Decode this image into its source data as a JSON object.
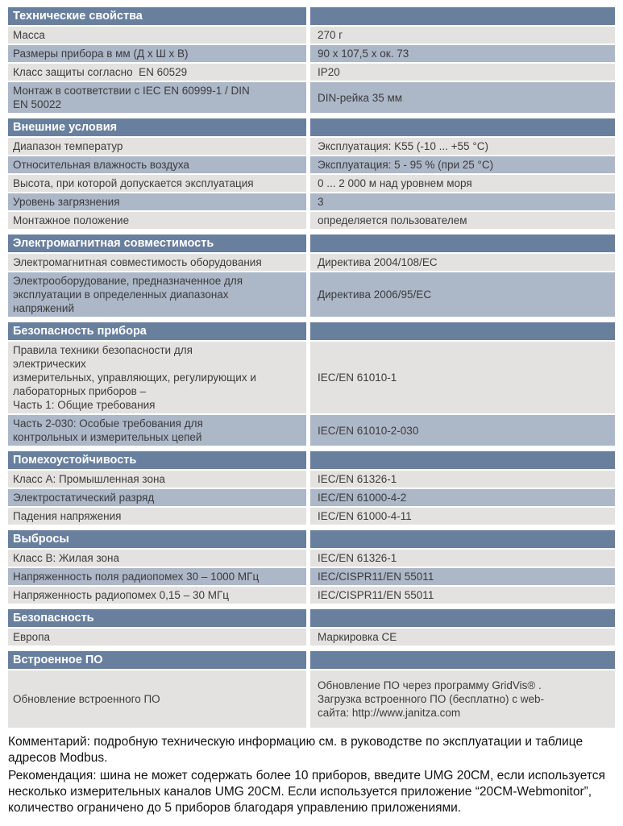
{
  "colors": {
    "section_header_bg": "#697f9e",
    "section_header_text": "#ffffff",
    "row_light_bg": "#e3e2e0",
    "row_alt_bg": "#acb7c8",
    "cell_text": "#3c3c3c"
  },
  "table": {
    "sections": [
      {
        "title": "Технические свойства",
        "rows": [
          {
            "label": "Масса",
            "value": "270 г"
          },
          {
            "label": "Размеры прибора в мм (Д х Ш х В)",
            "value": "90 х 107,5 х ок. 73"
          },
          {
            "label": "Класс защиты согласно  EN 60529",
            "value": "IP20"
          },
          {
            "label": "Монтаж в соответствии с IEC EN 60999-1 / DIN\nEN 50022",
            "value": "DIN-рейка 35 мм"
          }
        ]
      },
      {
        "title": "Внешние условия",
        "rows": [
          {
            "label": "Диапазон температур",
            "value": "Эксплуатация: K55 (-10 ... +55 °C)"
          },
          {
            "label": "Относительная влажность воздуха",
            "value": "Эксплуатация: 5 - 95 % (при 25 °C)"
          },
          {
            "label": "Высота, при которой допускается эксплуатация",
            "value": "0 ... 2 000 м над уровнем моря"
          },
          {
            "label": "Уровень загрязнения",
            "value": "3"
          },
          {
            "label": "Монтажное положение",
            "value": "определяется пользователем"
          }
        ]
      },
      {
        "title": "Электромагнитная совместимость",
        "rows": [
          {
            "label": "Электромагнитная совместимость оборудования",
            "value": "Директива 2004/108/EC"
          },
          {
            "label": "Электрооборудование, предназначенное для\nэксплуатации в определенных диапазонах\nнапряжений",
            "value": "Директива 2006/95/EC"
          }
        ]
      },
      {
        "title": "Безопасность прибора",
        "rows": [
          {
            "label": "Правила техники безопасности для\nэлектрических\nизмерительных, управляющих, регулирующих и\nлабораторных приборов –\nЧасть 1: Общие требования",
            "value": "IEC/EN 61010-1"
          },
          {
            "label": "Часть 2-030: Особые требования для\nконтрольных и измерительных цепей",
            "value": "IEC/EN 61010-2-030"
          }
        ]
      },
      {
        "title": "Помехоустойчивость",
        "rows": [
          {
            "label": "Класс A: Промышленная зона",
            "value": "IEC/EN 61326-1"
          },
          {
            "label": "Электростатический разряд",
            "value": "IEC/EN 61000-4-2"
          },
          {
            "label": "Падения напряжения",
            "value": "IEC/EN 61000-4-11"
          }
        ]
      },
      {
        "title": "Выбросы",
        "rows": [
          {
            "label": "Класс B: Жилая зона",
            "value": "IEC/EN 61326-1"
          },
          {
            "label": "Напряженность поля радиопомех 30 – 1000 МГц",
            "value": "IEC/CISPR11/EN 55011"
          },
          {
            "label": "Напряженность радиопомех 0,15 – 30 МГц",
            "value": "IEC/CISPR11/EN 55011"
          }
        ]
      },
      {
        "title": "Безопасность",
        "rows": [
          {
            "label": "Европа",
            "value": "Маркировка CE"
          }
        ]
      },
      {
        "title": "Встроенное ПО",
        "rows": [
          {
            "label": "Обновление встроенного ПО",
            "value": "Обновление ПО через программу GridVis® .\nЗагрузка встроенного ПО (бесплатно) с web-\nсайта: http://www.janitza.com"
          }
        ]
      }
    ]
  },
  "notes": {
    "comment": "Комментарий: подробную техническую информацию см. в руководстве по эксплуатации и таблице\nадресов Modbus.",
    "recommendation": "Рекомендация: шина не может содержать более 10 приборов, введите UMG 20CM, если используется\nнесколько измерительных каналов UMG 20CM. Если используется приложение “20CM-Webmonitor”,\nколичество ограничено до 5 приборов благодаря управлению приложениями."
  }
}
